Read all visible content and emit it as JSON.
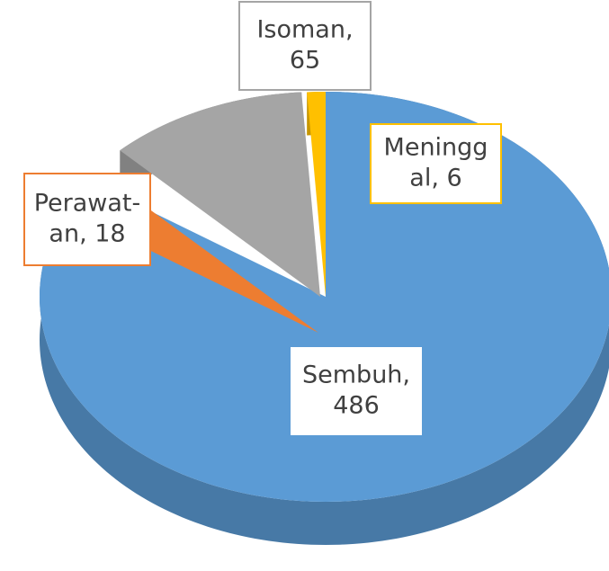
{
  "chart_data": {
    "type": "pie",
    "values": [
      486,
      18,
      65,
      6
    ],
    "value_labels": [
      [
        "Sembuh,",
        "486"
      ],
      [
        "Perawat-",
        "an, 18"
      ],
      [
        "Isoman,",
        "65"
      ],
      [
        "Meningg",
        "al, 6"
      ]
    ],
    "colors": [
      "#5b9bd5",
      "#ed7d31",
      "#a5a5a5",
      "#ffc000"
    ]
  }
}
